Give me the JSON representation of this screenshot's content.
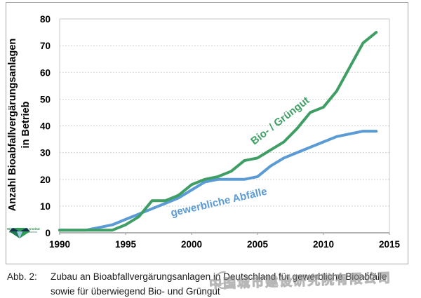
{
  "chart_data": {
    "type": "line",
    "title": "",
    "ylabel_line1": "Anzahl Bioabfallvergärungsanlagen",
    "ylabel_line2": "in Betrieb",
    "xlabel": "",
    "xlim": [
      1990,
      2015
    ],
    "ylim": [
      0,
      80
    ],
    "xticks": [
      1990,
      1995,
      2000,
      2005,
      2010,
      2015
    ],
    "yticks": [
      0,
      10,
      20,
      30,
      40,
      50,
      60,
      70,
      80
    ],
    "grid": "horizontal-dotted",
    "legend_position": "labels-on-lines",
    "x": [
      1990,
      1991,
      1992,
      1993,
      1994,
      1995,
      1996,
      1997,
      1998,
      1999,
      2000,
      2001,
      2002,
      2003,
      2004,
      2005,
      2006,
      2007,
      2008,
      2009,
      2010,
      2011,
      2012,
      2013,
      2014
    ],
    "series": [
      {
        "name": "gewerbliche Abfälle",
        "color": "#5b9bd5",
        "values": [
          1,
          1,
          1,
          2,
          3,
          5,
          7,
          9,
          11,
          13,
          16,
          19,
          20,
          20,
          20,
          21,
          25,
          28,
          30,
          32,
          34,
          36,
          37,
          38,
          38
        ]
      },
      {
        "name": "Bio- / Grüngut",
        "color": "#3f9e63",
        "values": [
          1,
          1,
          1,
          1,
          1,
          3,
          6,
          12,
          12,
          14,
          18,
          20,
          21,
          23,
          27,
          28,
          31,
          34,
          39,
          45,
          47,
          53,
          62,
          71,
          75
        ]
      }
    ]
  },
  "caption": {
    "tag": "Abb. 2:",
    "line1": "Zubau an Bioabfallvergärungsanlagen in Deutschland für gewerbliche Bioabfälle",
    "line2": "sowie für überwiegend Bio- und Grüngut"
  },
  "watermark": {
    "text": "中国城市建设研究院有限公司"
  },
  "logo": {
    "name": "Witzenhausen-Institut"
  }
}
